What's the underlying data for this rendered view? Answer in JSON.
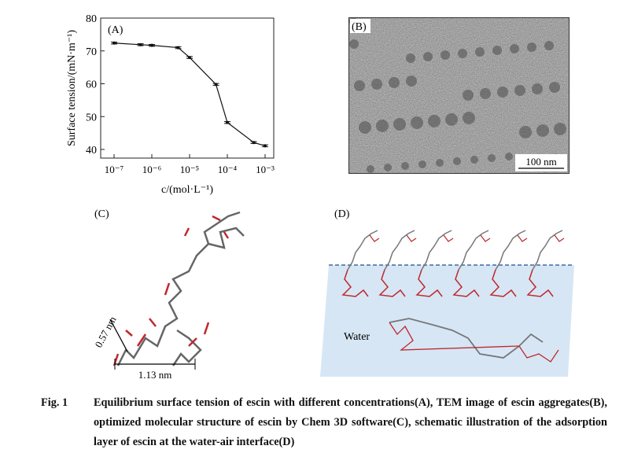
{
  "panel_labels": {
    "a": "(A)",
    "b": "(B)",
    "c": "(C)",
    "d": "(D)"
  },
  "chart_data": {
    "type": "line",
    "ylabel": "Surface tension/(mN·m⁻¹)",
    "xlabel": "c/(mol·L⁻¹)",
    "xscale": "log",
    "xlim": [
      1e-07,
      0.001
    ],
    "ylim": [
      40,
      80
    ],
    "xticks": [
      "10⁻⁷",
      "10⁻⁶",
      "10⁻⁵",
      "10⁻⁴",
      "10⁻³"
    ],
    "yticks": [
      "40",
      "50",
      "60",
      "70",
      "80"
    ],
    "x": [
      1e-07,
      5e-07,
      1e-06,
      5e-06,
      1e-05,
      5e-05,
      0.0001,
      0.0005,
      0.001
    ],
    "values": [
      72.4,
      71.9,
      71.7,
      71.0,
      68.0,
      59.8,
      48.2,
      42.1,
      41.1
    ],
    "error_bars": true,
    "grid": false
  },
  "tem": {
    "scale_bar": "100 nm"
  },
  "structure": {
    "dim_height": "0.57 nm",
    "dim_width": "1.13 nm"
  },
  "schematic": {
    "water_label": "Water",
    "water_color": "#d6e6f5",
    "interface_color": "#1f4e8c"
  },
  "caption": {
    "label": "Fig. 1",
    "text": "Equilibrium surface tension of escin with different concentrations(A), TEM image of escin aggregates(B), optimized molecular structure of escin by Chem 3D software(C), schematic illustration of the adsorption layer of escin at the water-air interface(D)"
  }
}
